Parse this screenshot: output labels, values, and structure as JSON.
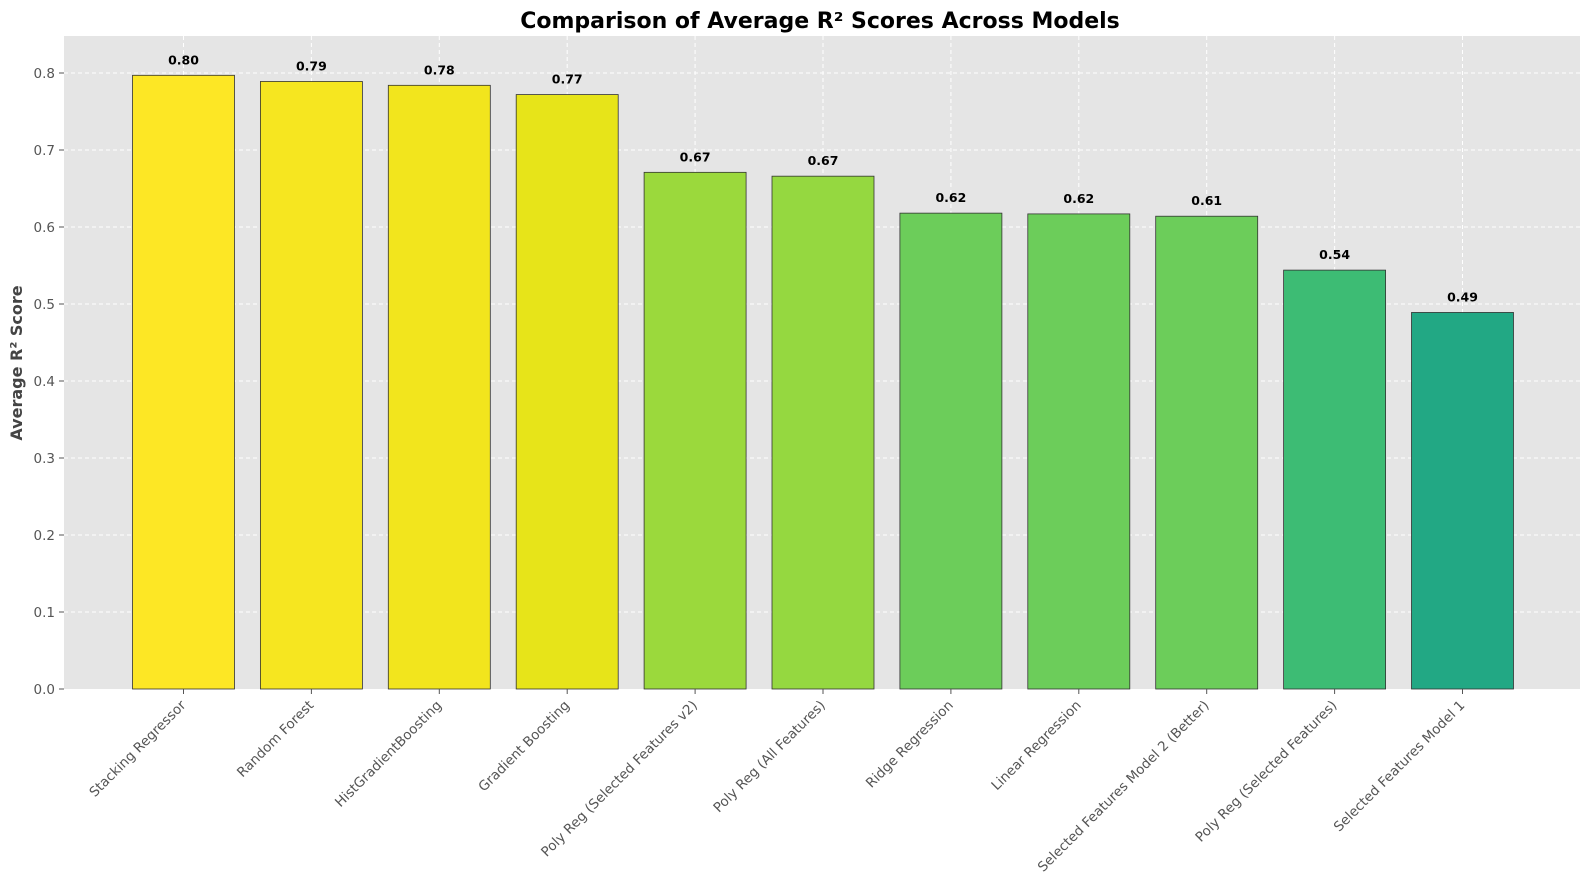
{
  "chart_data": {
    "type": "bar",
    "title": "Comparison of Average R² Scores Across Models",
    "xlabel": "",
    "ylabel": "Average R² Score",
    "ylim": [
      0,
      0.85
    ],
    "yticks": [
      "0.0",
      "0.1",
      "0.2",
      "0.3",
      "0.4",
      "0.5",
      "0.6",
      "0.7",
      "0.8"
    ],
    "grid": true,
    "categories": [
      "Stacking Regressor",
      "Random Forest",
      "HistGradientBoosting",
      "Gradient Boosting",
      "Poly Reg (Selected Features v2)",
      "Poly Reg (All Features)",
      "Ridge Regression",
      "Linear Regression",
      "Selected Features Model 2 (Better)",
      "Poly Reg (Selected Features)",
      "Selected Features Model 1"
    ],
    "values": [
      0.797,
      0.789,
      0.784,
      0.772,
      0.671,
      0.666,
      0.618,
      0.617,
      0.614,
      0.544,
      0.489
    ],
    "data_labels": [
      "0.80",
      "0.79",
      "0.78",
      "0.77",
      "0.67",
      "0.67",
      "0.62",
      "0.62",
      "0.61",
      "0.54",
      "0.49"
    ],
    "bar_colors": [
      "#fde725",
      "#f6e620",
      "#f2e51d",
      "#e7e419",
      "#9bd93c",
      "#95d840",
      "#6ccd5a",
      "#6ccd5a",
      "#6ccd5a",
      "#3dbc74",
      "#22a884"
    ],
    "colors": {
      "plot_background": "#e5e5e5",
      "grid": "#ffffff",
      "bar_edge": "#333333"
    }
  }
}
